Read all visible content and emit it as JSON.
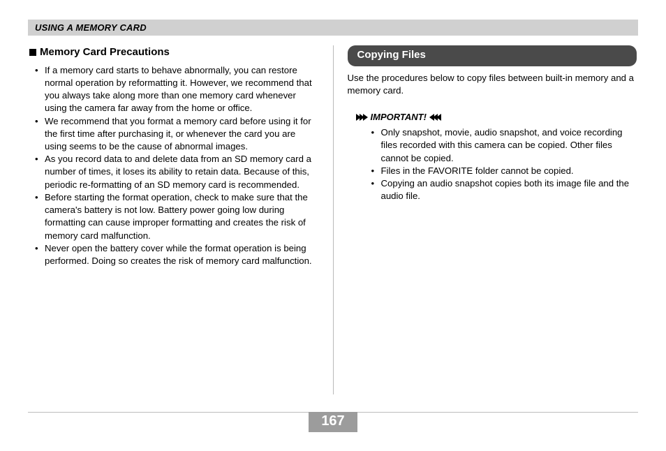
{
  "header": {
    "title": "USING A MEMORY CARD"
  },
  "left": {
    "heading": "Memory Card Precautions",
    "items": [
      "If a memory card starts to behave abnormally, you can restore normal operation by reformatting it. However, we recommend that you always take along more than one memory card whenever using the camera far away from the home or office.",
      "We recommend that you format a memory card before using it for the first time after purchasing it, or whenever the card you are using seems to be the cause of abnormal images.",
      "As you record data to and delete data from an SD memory card a number of times, it loses its ability to retain data. Because of this, periodic re-formatting of an SD memory card is recommended.",
      "Before starting the format operation, check to make sure that the camera's battery is not low. Battery power going low during formatting can cause improper formatting and creates the risk of memory card malfunction.",
      "Never open the battery cover while the format operation is being performed. Doing so creates the risk of memory card malfunction."
    ]
  },
  "right": {
    "pill": "Copying Files",
    "intro": "Use the procedures below to copy files between built-in memory and a memory card.",
    "important_label": "IMPORTANT!",
    "important_items": [
      "Only snapshot, movie, audio snapshot, and voice recording files recorded with this camera can be copied. Other files cannot be copied.",
      "Files in the FAVORITE folder cannot be copied.",
      "Copying an audio snapshot copies both its image file and the audio file."
    ]
  },
  "page_number": "167",
  "colors": {
    "header_bg": "#d0d0d0",
    "pill_bg": "#4a4a4a",
    "pagenum_bg": "#9c9c9c",
    "divider": "#b9b9b9",
    "rule": "#bcbcbc"
  }
}
